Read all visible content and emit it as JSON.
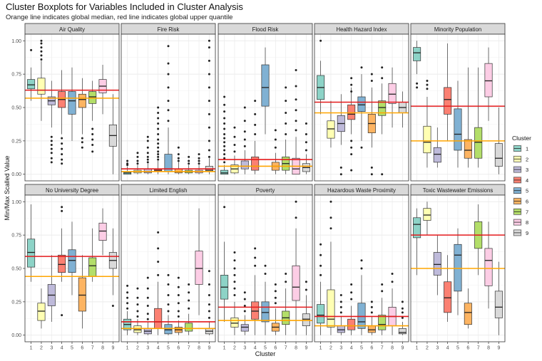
{
  "chart_data": {
    "type": "boxplot",
    "title": "Cluster Boxplots for Variables Included in Cluster Analysis",
    "subtitle": "Orange line indicates global median, red line indicates global upper quantile",
    "xlabel": "Cluster",
    "ylabel": "Min/Max Scalled Value",
    "ylim": [
      0,
      1
    ],
    "y_ticks": [
      "0.00",
      "0.25",
      "0.50",
      "0.75",
      "1.00"
    ],
    "categories": [
      "1",
      "2",
      "3",
      "4",
      "5",
      "6",
      "7",
      "8",
      "9"
    ],
    "legend": {
      "title": "Cluster",
      "placement": "right",
      "entries": [
        {
          "label": "1",
          "color": "#8DD3C7"
        },
        {
          "label": "2",
          "color": "#FFFFB3"
        },
        {
          "label": "3",
          "color": "#BEBADA"
        },
        {
          "label": "4",
          "color": "#FB8072"
        },
        {
          "label": "5",
          "color": "#80B1D3"
        },
        {
          "label": "6",
          "color": "#FDB462"
        },
        {
          "label": "7",
          "color": "#B3DE69"
        },
        {
          "label": "8",
          "color": "#FCCDE5"
        },
        {
          "label": "9",
          "color": "#D9D9D9"
        }
      ]
    },
    "reference_colors": {
      "median": "#FFA500",
      "upper": "#E41A1C"
    },
    "panels": [
      {
        "name": "Air Quality",
        "median": 0.57,
        "upper": 0.63,
        "boxes": [
          [
            0.55,
            0.64,
            0.67,
            0.71,
            0.8
          ],
          [
            0.4,
            0.6,
            0.63,
            0.72,
            0.85
          ],
          [
            0.35,
            0.52,
            0.55,
            0.58,
            0.7
          ],
          [
            0.3,
            0.5,
            0.56,
            0.62,
            0.78
          ],
          [
            0.25,
            0.45,
            0.55,
            0.62,
            0.8
          ],
          [
            0.3,
            0.5,
            0.56,
            0.6,
            0.72
          ],
          [
            0.4,
            0.53,
            0.58,
            0.62,
            0.7
          ],
          [
            0.45,
            0.61,
            0.66,
            0.71,
            0.82
          ],
          [
            0.0,
            0.21,
            0.29,
            0.37,
            0.6
          ]
        ],
        "outliers": [
          [
            0.93
          ],
          [
            0.86,
            0.89,
            0.92,
            0.95,
            0.98,
            1.0
          ],
          [
            0.28,
            0.25,
            0.22,
            0.19,
            0.16,
            0.12,
            0.09
          ],
          [
            0.27,
            0.23,
            0.19,
            0.15,
            0.11,
            0.08
          ],
          [],
          [
            0.27,
            0.24,
            0.2
          ],
          [
            0.34,
            0.3,
            0.26,
            0.22,
            0.17
          ],
          [],
          []
        ]
      },
      {
        "name": "Fire Risk",
        "median": 0.02,
        "upper": 0.04,
        "boxes": [
          [
            0.0,
            0.0,
            0.01,
            0.02,
            0.06
          ],
          [
            0.0,
            0.01,
            0.02,
            0.03,
            0.07
          ],
          [
            0.0,
            0.01,
            0.02,
            0.04,
            0.08
          ],
          [
            0.0,
            0.02,
            0.03,
            0.04,
            0.1
          ],
          [
            0.0,
            0.02,
            0.04,
            0.15,
            0.35
          ],
          [
            0.0,
            0.01,
            0.02,
            0.04,
            0.09
          ],
          [
            0.0,
            0.01,
            0.02,
            0.03,
            0.07
          ],
          [
            0.0,
            0.01,
            0.02,
            0.03,
            0.07
          ],
          [
            0.0,
            0.02,
            0.03,
            0.06,
            0.12
          ]
        ],
        "outliers": [
          [
            0.07,
            0.08,
            0.1
          ],
          [
            0.08,
            0.1,
            0.13,
            0.16
          ],
          [
            0.09,
            0.11,
            0.13,
            0.16,
            0.2,
            0.25,
            0.28
          ],
          [
            0.11,
            0.13,
            0.15,
            0.17,
            0.2,
            0.23,
            0.26,
            0.3,
            0.34,
            0.38,
            0.42,
            0.46,
            0.5
          ],
          [
            0.4,
            0.48,
            0.55,
            0.65,
            0.75,
            0.83,
            0.96
          ],
          [
            0.1,
            0.12,
            0.15,
            0.2
          ],
          [
            0.08,
            0.1,
            0.13
          ],
          [
            0.08,
            0.1,
            0.12,
            0.15
          ],
          [
            0.13,
            0.18,
            0.25,
            0.35,
            0.45,
            0.55,
            0.65,
            0.75,
            0.85,
            0.95,
            1.0
          ]
        ]
      },
      {
        "name": "Flood Risk",
        "median": 0.06,
        "upper": 0.11,
        "boxes": [
          [
            0.0,
            0.0,
            0.01,
            0.03,
            0.07
          ],
          [
            0.0,
            0.01,
            0.04,
            0.07,
            0.14
          ],
          [
            0.0,
            0.04,
            0.06,
            0.1,
            0.18
          ],
          [
            0.0,
            0.03,
            0.06,
            0.13,
            0.25
          ],
          [
            0.3,
            0.51,
            0.65,
            0.82,
            0.95
          ],
          [
            0.0,
            0.03,
            0.06,
            0.09,
            0.16
          ],
          [
            0.0,
            0.03,
            0.08,
            0.13,
            0.26
          ],
          [
            0.0,
            0.0,
            0.04,
            0.12,
            0.28
          ],
          [
            0.0,
            0.02,
            0.05,
            0.08,
            0.15
          ]
        ],
        "outliers": [
          [
            0.09,
            0.12,
            0.15,
            0.18,
            0.21,
            0.24,
            0.27,
            0.3,
            0.34,
            0.38,
            0.42,
            0.47,
            0.52,
            0.58
          ],
          [
            0.17,
            0.22,
            0.28,
            0.35
          ],
          [
            0.21,
            0.26,
            0.32,
            0.4,
            0.5
          ],
          [
            0.3,
            0.37,
            0.45,
            0.55
          ],
          [],
          [
            0.2,
            0.26,
            0.33
          ],
          [
            0.3,
            0.38,
            0.46,
            0.55,
            0.65
          ],
          [
            0.33,
            0.4,
            0.48,
            0.56,
            0.66,
            0.78
          ],
          [
            0.18,
            0.24,
            0.3,
            0.38
          ]
        ]
      },
      {
        "name": "Health Hazard Index",
        "median": 0.46,
        "upper": 0.54,
        "boxes": [
          [
            0.45,
            0.56,
            0.65,
            0.74,
            0.85
          ],
          [
            0.2,
            0.27,
            0.34,
            0.4,
            0.55
          ],
          [
            0.22,
            0.32,
            0.38,
            0.44,
            0.6
          ],
          [
            0.3,
            0.41,
            0.45,
            0.52,
            0.65
          ],
          [
            0.25,
            0.47,
            0.52,
            0.58,
            0.75
          ],
          [
            0.2,
            0.31,
            0.38,
            0.45,
            0.65
          ],
          [
            0.3,
            0.44,
            0.5,
            0.55,
            0.68
          ],
          [
            0.35,
            0.53,
            0.6,
            0.68,
            0.8
          ],
          [
            0.35,
            0.46,
            0.5,
            0.54,
            0.62
          ]
        ],
        "outliers": [
          [
            1.0
          ],
          [],
          [
            0.0,
            0.05
          ],
          [
            0.62,
            0.67,
            0.72,
            0.25,
            0.2,
            0.15,
            0.03
          ],
          [
            0.8,
            0.2
          ],
          [
            0.0,
            0.05,
            0.7,
            0.75
          ],
          [
            0.72,
            0.8,
            0.0
          ],
          [],
          []
        ]
      },
      {
        "name": "Minority Population",
        "median": 0.25,
        "upper": 0.51,
        "boxes": [
          [
            0.75,
            0.85,
            0.91,
            0.95,
            1.0
          ],
          [
            0.05,
            0.16,
            0.24,
            0.36,
            0.58
          ],
          [
            0.05,
            0.09,
            0.15,
            0.2,
            0.35
          ],
          [
            0.25,
            0.45,
            0.56,
            0.65,
            0.98
          ],
          [
            0.05,
            0.18,
            0.3,
            0.49,
            0.7
          ],
          [
            0.05,
            0.12,
            0.18,
            0.26,
            0.8
          ],
          [
            0.05,
            0.12,
            0.24,
            0.35,
            0.8
          ],
          [
            0.4,
            0.58,
            0.7,
            0.83,
            0.95
          ],
          [
            0.0,
            0.06,
            0.12,
            0.23,
            0.5
          ]
        ],
        "outliers": [
          [
            0.68,
            0.65
          ],
          [
            0.64,
            0.67,
            0.7
          ],
          [],
          [],
          [],
          [],
          [],
          [],
          []
        ]
      },
      {
        "name": "No University Degree",
        "median": 0.44,
        "upper": 0.59,
        "boxes": [
          [
            0.4,
            0.51,
            0.62,
            0.72,
            0.98
          ],
          [
            0.05,
            0.11,
            0.18,
            0.24,
            0.35
          ],
          [
            0.1,
            0.22,
            0.3,
            0.38,
            0.6
          ],
          [
            0.4,
            0.47,
            0.53,
            0.6,
            0.8
          ],
          [
            0.3,
            0.47,
            0.56,
            0.64,
            0.85
          ],
          [
            0.05,
            0.18,
            0.3,
            0.43,
            0.6
          ],
          [
            0.4,
            0.44,
            0.52,
            0.58,
            0.8
          ],
          [
            0.6,
            0.71,
            0.78,
            0.84,
            0.95
          ],
          [
            0.3,
            0.5,
            0.56,
            0.62,
            0.8
          ]
        ],
        "outliers": [
          [],
          [],
          [],
          [
            0.96,
            0.93,
            0.15
          ],
          [],
          [],
          [],
          [],
          [
            0.22
          ]
        ]
      },
      {
        "name": "Limited English",
        "median": 0.05,
        "upper": 0.1,
        "boxes": [
          [
            0.0,
            0.04,
            0.08,
            0.12,
            0.18
          ],
          [
            0.0,
            0.02,
            0.04,
            0.07,
            0.12
          ],
          [
            0.0,
            0.01,
            0.03,
            0.05,
            0.1
          ],
          [
            0.0,
            0.05,
            0.1,
            0.2,
            0.4
          ],
          [
            0.0,
            0.01,
            0.04,
            0.08,
            0.15
          ],
          [
            0.0,
            0.02,
            0.04,
            0.06,
            0.11
          ],
          [
            0.0,
            0.03,
            0.05,
            0.09,
            0.16
          ],
          [
            0.15,
            0.38,
            0.5,
            0.63,
            0.95
          ],
          [
            0.0,
            0.01,
            0.03,
            0.05,
            0.1
          ]
        ],
        "outliers": [
          [
            0.2,
            0.24,
            0.28,
            0.32,
            0.37
          ],
          [
            0.14,
            0.18,
            0.23,
            0.28,
            0.35
          ],
          [
            0.12,
            0.16,
            0.22,
            0.28,
            0.35,
            0.43
          ],
          [
            0.45,
            0.55,
            0.65,
            0.77
          ],
          [
            0.18,
            0.23,
            0.3,
            0.38,
            0.45
          ],
          [
            0.14,
            0.18,
            0.24,
            0.3,
            0.36,
            0.43
          ],
          [
            0.2,
            0.26,
            0.32,
            0.38
          ],
          [],
          [
            0.13,
            0.18,
            0.23,
            0.3,
            0.38,
            0.48
          ]
        ]
      },
      {
        "name": "Poverty",
        "median": 0.11,
        "upper": 0.21,
        "boxes": [
          [
            0.1,
            0.27,
            0.36,
            0.45,
            0.7
          ],
          [
            0.0,
            0.06,
            0.09,
            0.13,
            0.25
          ],
          [
            0.0,
            0.03,
            0.06,
            0.08,
            0.15
          ],
          [
            0.0,
            0.12,
            0.18,
            0.25,
            0.45
          ],
          [
            0.0,
            0.1,
            0.17,
            0.25,
            0.4
          ],
          [
            0.0,
            0.03,
            0.06,
            0.09,
            0.2
          ],
          [
            0.0,
            0.08,
            0.13,
            0.18,
            0.35
          ],
          [
            0.0,
            0.26,
            0.36,
            0.52,
            0.8
          ],
          [
            0.0,
            0.07,
            0.12,
            0.16,
            0.3
          ]
        ],
        "outliers": [
          [
            0.96
          ],
          [
            0.3,
            0.35,
            0.4,
            0.45,
            0.5,
            0.56,
            0.62
          ],
          [
            0.18,
            0.22,
            0.27,
            0.32
          ],
          [
            0.52,
            0.58,
            0.65
          ],
          [
            0.46,
            0.52
          ],
          [
            0.24,
            0.28,
            0.33,
            0.38
          ],
          [
            0.4,
            0.46
          ],
          [
            0.88,
            1.0
          ],
          [
            0.34,
            0.4
          ]
        ]
      },
      {
        "name": "Hazardous Waste Proximity",
        "median": 0.07,
        "upper": 0.14,
        "boxes": [
          [
            0.0,
            0.09,
            0.15,
            0.23,
            0.4
          ],
          [
            0.0,
            0.06,
            0.12,
            0.34,
            0.7
          ],
          [
            0.0,
            0.02,
            0.04,
            0.07,
            0.14
          ],
          [
            0.0,
            0.04,
            0.07,
            0.12,
            0.22
          ],
          [
            0.0,
            0.05,
            0.1,
            0.24,
            0.45
          ],
          [
            0.0,
            0.02,
            0.04,
            0.07,
            0.14
          ],
          [
            0.0,
            0.04,
            0.08,
            0.15,
            0.28
          ],
          [
            0.0,
            0.07,
            0.14,
            0.21,
            0.35
          ],
          [
            0.0,
            0.01,
            0.02,
            0.05,
            0.1
          ]
        ],
        "outliers": [
          [
            0.45,
            0.52,
            0.6,
            0.68
          ],
          [
            0.8,
            0.88,
            1.0
          ],
          [
            0.17,
            0.21,
            0.25,
            0.3
          ],
          [
            0.27,
            0.32,
            0.38
          ],
          [
            0.5,
            0.56
          ],
          [
            0.17,
            0.21,
            0.25
          ],
          [
            0.33,
            0.38
          ],
          [
            0.4,
            0.46
          ],
          [
            0.13,
            0.17,
            0.2,
            0.25
          ]
        ]
      },
      {
        "name": "Toxic Wastewater Emissions",
        "median": 0.5,
        "upper": 0.75,
        "boxes": [
          [
            0.45,
            0.73,
            0.83,
            0.88,
            0.95
          ],
          [
            0.75,
            0.86,
            0.9,
            0.95,
            1.0
          ],
          [
            0.3,
            0.45,
            0.53,
            0.62,
            0.75
          ],
          [
            0.1,
            0.17,
            0.28,
            0.4,
            0.6
          ],
          [
            0.15,
            0.33,
            0.6,
            0.68,
            0.8
          ],
          [
            0.05,
            0.08,
            0.17,
            0.24,
            0.35
          ],
          [
            0.45,
            0.65,
            0.75,
            0.85,
            0.98
          ],
          [
            0.2,
            0.37,
            0.56,
            0.65,
            0.85
          ],
          [
            0.0,
            0.13,
            0.21,
            0.33,
            0.55
          ]
        ],
        "outliers": [
          [],
          [],
          [],
          [],
          [],
          [],
          [],
          [],
          []
        ]
      }
    ]
  }
}
